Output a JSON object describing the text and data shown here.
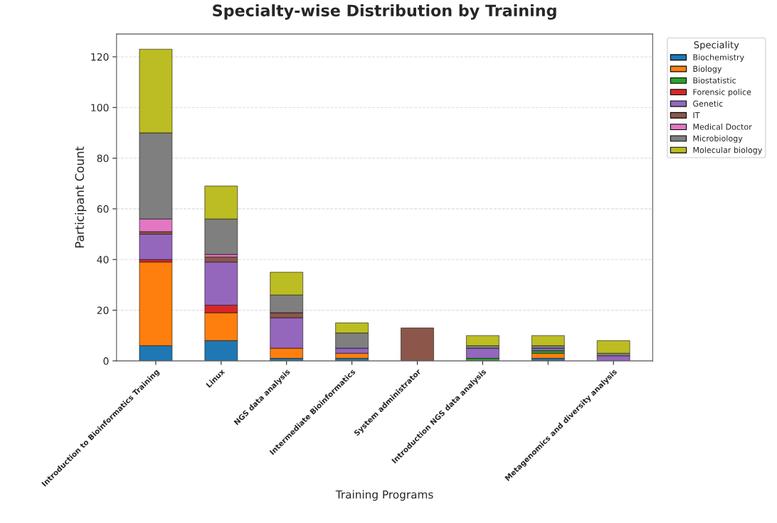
{
  "chart_data": {
    "type": "bar",
    "stacked": true,
    "title": "Specialty-wise Distribution by Training",
    "xlabel": "Training Programs",
    "ylabel": "Participant Count",
    "legend_title": "Speciality",
    "legend": "top right",
    "grid": "y",
    "categories": [
      "Introduction to Bioinformatics Training",
      "Linux",
      "NGS data analysis",
      "Intermediate Bioinformatics",
      "System administrator",
      "Introduction NGS data analysis",
      null,
      "Metagenomics and diversity analysis"
    ],
    "ylim": [
      0,
      129
    ],
    "yticks": [
      0,
      20,
      40,
      60,
      80,
      100,
      120
    ],
    "series": [
      {
        "name": "Biochemistry",
        "color": "#1f77b4",
        "values": [
          6,
          8,
          1,
          1,
          null,
          null,
          1,
          null
        ]
      },
      {
        "name": "Biology",
        "color": "#ff7f0e",
        "values": [
          33,
          11,
          4,
          2,
          null,
          null,
          2,
          null
        ]
      },
      {
        "name": "Biostatistic",
        "color": "#2ca02c",
        "values": [
          null,
          null,
          null,
          null,
          null,
          1,
          1,
          null
        ]
      },
      {
        "name": "Forensic police",
        "color": "#d62728",
        "values": [
          1,
          3,
          null,
          null,
          null,
          null,
          null,
          null
        ]
      },
      {
        "name": "Genetic",
        "color": "#9467bd",
        "values": [
          10,
          17,
          12,
          2,
          null,
          4,
          1,
          2
        ]
      },
      {
        "name": "IT",
        "color": "#8c564b",
        "values": [
          1,
          2,
          2,
          null,
          13,
          null,
          null,
          null
        ]
      },
      {
        "name": "Medical Doctor",
        "color": "#e377c2",
        "values": [
          5,
          1,
          null,
          null,
          null,
          null,
          null,
          null
        ]
      },
      {
        "name": "Microbiology",
        "color": "#7f7f7f",
        "values": [
          34,
          14,
          7,
          6,
          null,
          1,
          1,
          1
        ]
      },
      {
        "name": "Molecular biology",
        "color": "#bcbd22",
        "values": [
          33,
          13,
          9,
          4,
          null,
          4,
          4,
          5
        ]
      }
    ]
  }
}
